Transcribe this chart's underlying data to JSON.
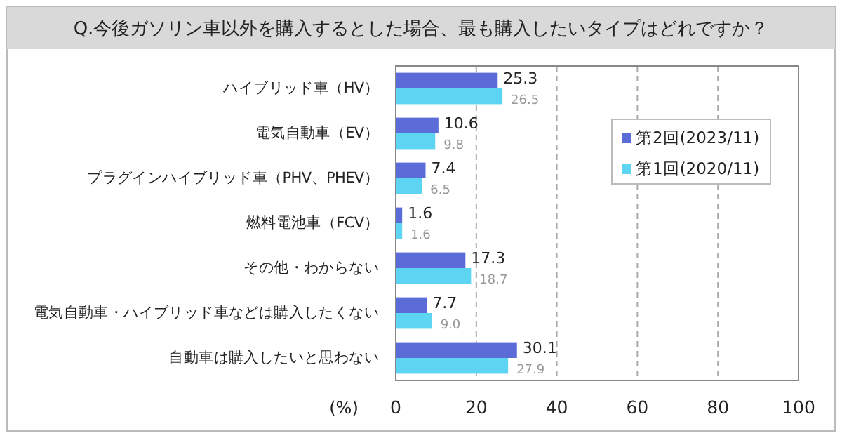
{
  "chart_data": {
    "type": "bar",
    "orientation": "horizontal",
    "title": "Q.今後ガソリン車以外を購入するとした場合、最も購入したいタイプはどれですか？",
    "xlabel": "(%)",
    "categories": [
      "ハイブリッド車（HV）",
      "電気自動車（EV）",
      "プラグインハイブリッド車（PHV、PHEV）",
      "燃料電池車（FCV）",
      "その他・わからない",
      "電気自動車・ハイブリッド車などは購入したくない",
      "自動車は購入したいと思わない"
    ],
    "series": [
      {
        "name": "第2回(2023/11)",
        "color": "#5b6cd8",
        "values": [
          25.3,
          10.6,
          7.4,
          1.6,
          17.3,
          7.7,
          30.1
        ],
        "value_labels": [
          "25.3",
          "10.6",
          "7.4",
          "1.6",
          "17.3",
          "7.7",
          "30.1"
        ]
      },
      {
        "name": "第1回(2020/11)",
        "color": "#5dd4f2",
        "values": [
          26.5,
          9.8,
          6.5,
          1.6,
          18.7,
          9.0,
          27.9
        ],
        "value_labels": [
          "26.5",
          "9.8",
          "6.5",
          "1.6",
          "18.7",
          "9.0",
          "27.9"
        ]
      }
    ],
    "xlim": [
      0,
      100
    ],
    "xticks": [
      0,
      20,
      40,
      60,
      80,
      100
    ],
    "grid": "x",
    "legend": "right"
  }
}
